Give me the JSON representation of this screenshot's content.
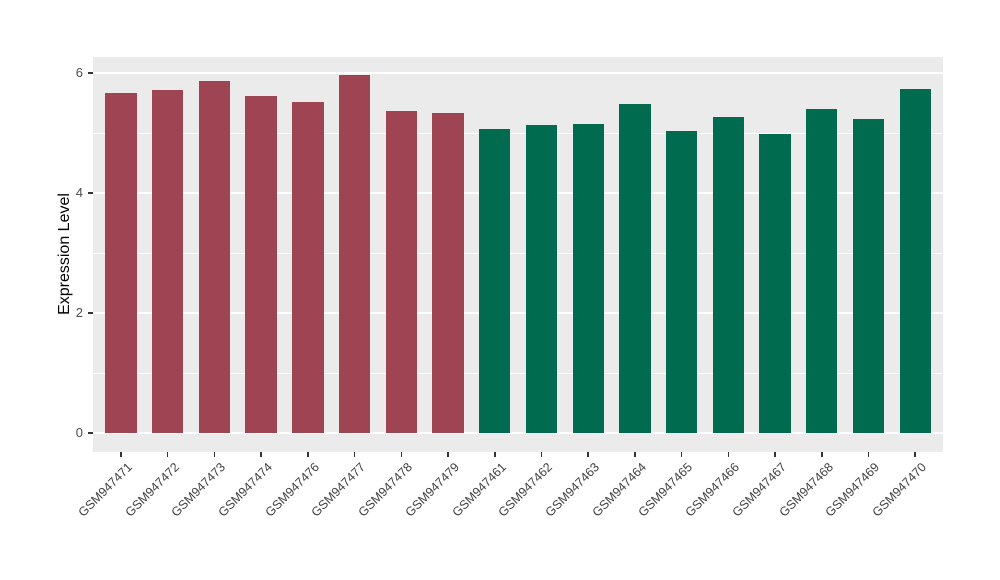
{
  "style": {
    "background": "#ffffff",
    "panel_background": "#ebebeb",
    "grid_color": "#ffffff",
    "tick_mark_color": "#333333",
    "tick_label_color": "#404040",
    "axis_title_color": "#000000",
    "group1_color": "#9e4452",
    "group2_color": "#006b4e"
  },
  "chart_data": {
    "type": "bar",
    "title": "",
    "xlabel": "",
    "ylabel": "Expression Level",
    "ylim": [
      0,
      6.27
    ],
    "yticks": [
      0,
      2,
      4,
      6
    ],
    "yticks_minor": [
      1,
      3,
      5
    ],
    "grid": true,
    "legend_position": "none",
    "categories": [
      "GSM947471",
      "GSM947472",
      "GSM947473",
      "GSM947474",
      "GSM947476",
      "GSM947477",
      "GSM947478",
      "GSM947479",
      "GSM947461",
      "GSM947462",
      "GSM947463",
      "GSM947464",
      "GSM947465",
      "GSM947466",
      "GSM947467",
      "GSM947468",
      "GSM947469",
      "GSM947470"
    ],
    "values": [
      5.66,
      5.72,
      5.86,
      5.62,
      5.51,
      5.97,
      5.36,
      5.34,
      5.06,
      5.14,
      5.15,
      5.48,
      5.04,
      5.27,
      4.99,
      5.4,
      5.24,
      5.73
    ],
    "bar_colors": [
      "#9e4452",
      "#9e4452",
      "#9e4452",
      "#9e4452",
      "#9e4452",
      "#9e4452",
      "#9e4452",
      "#9e4452",
      "#006b4e",
      "#006b4e",
      "#006b4e",
      "#006b4e",
      "#006b4e",
      "#006b4e",
      "#006b4e",
      "#006b4e",
      "#006b4e",
      "#006b4e"
    ]
  }
}
